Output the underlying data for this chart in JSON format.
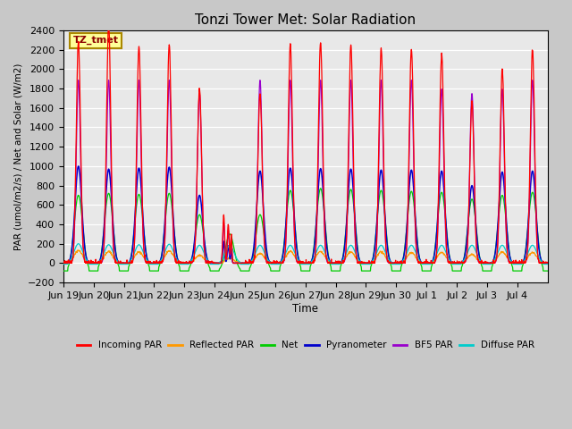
{
  "title": "Tonzi Tower Met: Solar Radiation",
  "ylabel": "PAR (umol/m2/s) / Net and Solar (W/m2)",
  "xlabel": "Time",
  "annotation": "TZ_tmet",
  "ylim": [
    -200,
    2400
  ],
  "colors": {
    "incoming_par": "#ff0000",
    "reflected_par": "#ff9900",
    "net": "#00cc00",
    "pyranometer": "#0000cc",
    "bf5_par": "#9900cc",
    "diffuse_par": "#00cccc"
  },
  "legend": [
    "Incoming PAR",
    "Reflected PAR",
    "Net",
    "Pyranometer",
    "BF5 PAR",
    "Diffuse PAR"
  ],
  "x_tick_labels": [
    "Jun 19",
    "Jun 20",
    "Jun 21",
    "Jun 22",
    "Jun 23",
    "Jun 24",
    "Jun 25",
    "Jun 26",
    "Jun 27",
    "Jun 28",
    "Jun 29",
    "Jun 30",
    "Jul 1",
    "Jul 2",
    "Jul 3",
    "Jul 4"
  ],
  "num_days": 16,
  "points_per_day": 96
}
